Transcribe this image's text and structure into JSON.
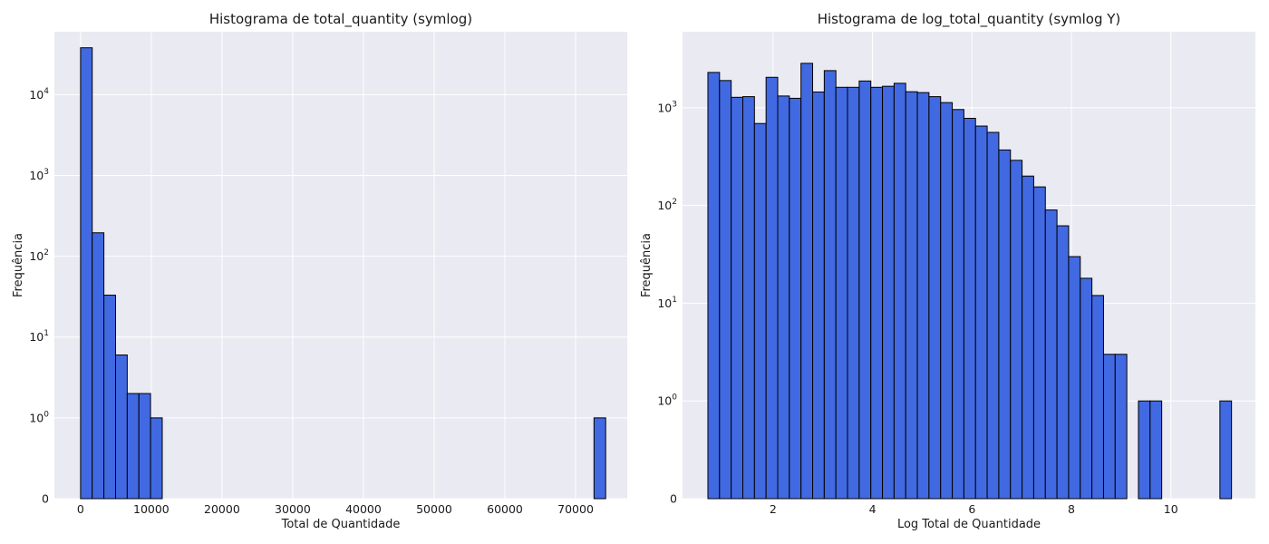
{
  "chart_data": [
    {
      "type": "bar",
      "title": "Histograma de total_quantity (symlog)",
      "xlabel": "Total de Quantidade",
      "ylabel": "Frequência",
      "xscale": "linear",
      "yscale": "symlog",
      "xlim": [
        -3700,
        77300
      ],
      "ylim": [
        0,
        60000
      ],
      "xticks": [
        0,
        10000,
        20000,
        30000,
        40000,
        50000,
        60000,
        70000
      ],
      "xtick_labels": [
        "0",
        "10000",
        "20000",
        "30000",
        "40000",
        "50000",
        "60000",
        "70000"
      ],
      "yticks": [
        0,
        1,
        10,
        100,
        1000,
        10000
      ],
      "ytick_labels": [
        {
          "base": "0",
          "exp": ""
        },
        {
          "base": "10",
          "exp": "0"
        },
        {
          "base": "10",
          "exp": "1"
        },
        {
          "base": "10",
          "exp": "2"
        },
        {
          "base": "10",
          "exp": "3"
        },
        {
          "base": "10",
          "exp": "4"
        }
      ],
      "grid": true,
      "bin_edges": [
        0,
        1650,
        3300,
        4950,
        6600,
        8250,
        9900,
        11550,
        13200,
        14850,
        16500,
        18150,
        19800,
        21450,
        23100,
        24750,
        26400,
        28050,
        29700,
        31350,
        33000,
        34650,
        36300,
        37950,
        39600,
        41250,
        42900,
        44550,
        46200,
        47850,
        49500,
        51150,
        52800,
        54450,
        56100,
        57750,
        59400,
        61050,
        62700,
        64350,
        66000,
        67650,
        69300,
        70950,
        72600,
        74250
      ],
      "values": [
        38000,
        195,
        33,
        6,
        2,
        2,
        1,
        0,
        0,
        0,
        0,
        0,
        0,
        0,
        0,
        0,
        0,
        0,
        0,
        0,
        0,
        0,
        0,
        0,
        0,
        0,
        0,
        0,
        0,
        0,
        0,
        0,
        0,
        0,
        0,
        0,
        0,
        0,
        0,
        0,
        0,
        0,
        0,
        0,
        1
      ]
    },
    {
      "type": "bar",
      "title": "Histograma de log_total_quantity (symlog Y)",
      "xlabel": "Log Total de Quantidade",
      "ylabel": "Frequência",
      "xscale": "linear",
      "yscale": "symlog",
      "xlim": [
        0.18,
        11.7
      ],
      "ylim": [
        0,
        6000
      ],
      "xticks": [
        2,
        4,
        6,
        8,
        10
      ],
      "xtick_labels": [
        "2",
        "4",
        "6",
        "8",
        "10"
      ],
      "yticks": [
        0,
        1,
        10,
        100,
        1000
      ],
      "ytick_labels": [
        {
          "base": "0",
          "exp": ""
        },
        {
          "base": "10",
          "exp": "0"
        },
        {
          "base": "10",
          "exp": "1"
        },
        {
          "base": "10",
          "exp": "2"
        },
        {
          "base": "10",
          "exp": "3"
        }
      ],
      "grid": true,
      "bin_edges": [
        0.69,
        0.924,
        1.158,
        1.392,
        1.626,
        1.86,
        2.094,
        2.328,
        2.562,
        2.796,
        3.03,
        3.264,
        3.498,
        3.732,
        3.966,
        4.2,
        4.434,
        4.668,
        4.902,
        5.136,
        5.37,
        5.604,
        5.838,
        6.072,
        6.306,
        6.54,
        6.774,
        7.008,
        7.242,
        7.476,
        7.71,
        7.944,
        8.178,
        8.412,
        8.646,
        8.88,
        9.114,
        9.348,
        9.582,
        9.816,
        10.05,
        10.284,
        10.518,
        10.752,
        10.986,
        11.22
      ],
      "values": [
        2300,
        1900,
        1280,
        1300,
        690,
        2050,
        1320,
        1250,
        2850,
        1450,
        2400,
        1620,
        1620,
        1880,
        1620,
        1660,
        1780,
        1460,
        1430,
        1300,
        1130,
        960,
        780,
        650,
        560,
        370,
        290,
        200,
        155,
        90,
        62,
        30,
        18,
        12,
        3,
        3,
        0,
        1,
        1,
        0,
        0,
        0,
        0,
        0,
        1
      ]
    }
  ],
  "colors": {
    "bar_fill": "#4169e1",
    "bar_edge": "#000000",
    "plot_bg": "#eaeaf2",
    "grid": "#ffffff"
  }
}
